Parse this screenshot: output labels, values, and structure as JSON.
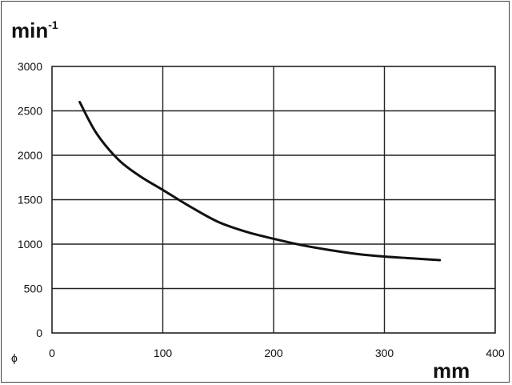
{
  "chart_data": {
    "type": "line",
    "ylabel": "min",
    "ylabel_sup": "-1",
    "xlabel": "mm",
    "x_symbol": "ϕ",
    "xlim": [
      0,
      400
    ],
    "ylim": [
      0,
      3000
    ],
    "x_ticks": [
      "0",
      "100",
      "200",
      "300",
      "400"
    ],
    "y_ticks": [
      "0",
      "500",
      "1000",
      "1500",
      "2000",
      "2500",
      "3000"
    ],
    "grid": true,
    "colors": {
      "line": "#111111",
      "grid": "#222222",
      "frame": "#444444"
    },
    "series": [
      {
        "x": [
          25,
          40,
          60,
          80,
          100,
          125,
          150,
          175,
          200,
          225,
          250,
          275,
          300,
          325,
          350
        ],
        "y": [
          2600,
          2250,
          1950,
          1760,
          1610,
          1420,
          1250,
          1140,
          1060,
          990,
          935,
          890,
          860,
          840,
          820
        ]
      }
    ]
  }
}
